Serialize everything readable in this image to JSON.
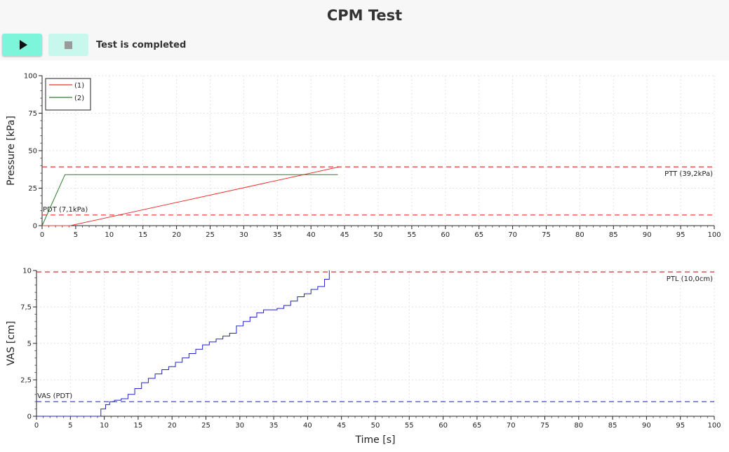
{
  "header": {
    "title": "CPM Test",
    "play_icon": "play-icon",
    "stop_icon": "stop-icon",
    "status": "Test is completed",
    "colors": {
      "play_button": "#7df5da",
      "stop_button": "#c8f7ee"
    }
  },
  "chart_data": [
    {
      "type": "line",
      "xlabel": "",
      "ylabel": "Pressure [kPa]",
      "xlim": [
        0,
        100
      ],
      "ylim": [
        0,
        100
      ],
      "xticks": [
        0,
        5,
        10,
        15,
        20,
        25,
        30,
        35,
        40,
        45,
        50,
        55,
        60,
        65,
        70,
        75,
        80,
        85,
        90,
        95,
        100
      ],
      "yticks": [
        0,
        25,
        50,
        75,
        100
      ],
      "ytick_labels": [
        "0",
        "25",
        "50",
        "75",
        "100"
      ],
      "grid": true,
      "legend": "top-left",
      "series": [
        {
          "name": "(1)",
          "color": "#ee3333",
          "x": [
            0,
            4.2,
            44.2
          ],
          "y": [
            0,
            0,
            39.2
          ]
        },
        {
          "name": "(2)",
          "color": "#2e7d2e",
          "x": [
            0,
            3.4,
            44
          ],
          "y": [
            0,
            34,
            34
          ]
        }
      ],
      "reference_lines": [
        {
          "label": "PTT (39,2kPa)",
          "y": 39.2,
          "color": "#ee3333",
          "label_position": "right"
        },
        {
          "label": "PDT (7,1kPa)",
          "y": 7.1,
          "color": "#ee3333",
          "label_position": "left"
        }
      ]
    },
    {
      "type": "line",
      "xlabel": "Time [s]",
      "ylabel": "VAS [cm]",
      "xlim": [
        0,
        100
      ],
      "ylim": [
        0,
        10
      ],
      "xticks": [
        0,
        5,
        10,
        15,
        20,
        25,
        30,
        35,
        40,
        45,
        50,
        55,
        60,
        65,
        70,
        75,
        80,
        85,
        90,
        95,
        100
      ],
      "yticks": [
        0,
        2.5,
        5,
        7.5,
        10
      ],
      "ytick_labels": [
        "0",
        "2,5",
        "5",
        "7,5",
        "10"
      ],
      "grid": true,
      "series": [
        {
          "color": "#2222cc",
          "x": [
            0,
            8.8,
            9.5,
            10.2,
            10.8,
            11.5,
            12.5,
            13.5,
            14.5,
            15.5,
            16.5,
            17.5,
            18.5,
            19.5,
            20.5,
            21.5,
            22.5,
            23.5,
            24.5,
            25.5,
            26.5,
            27.5,
            28.5,
            29.5,
            30.5,
            31.5,
            32.5,
            33.5,
            34.5,
            35.5,
            36.5,
            37.5,
            38.5,
            39.5,
            40.5,
            41.5,
            42.5,
            43.2
          ],
          "y": [
            0,
            0,
            0.5,
            0.8,
            1.0,
            1.1,
            1.2,
            1.5,
            1.9,
            2.3,
            2.6,
            2.9,
            3.2,
            3.4,
            3.7,
            4.0,
            4.3,
            4.6,
            4.9,
            5.1,
            5.3,
            5.5,
            5.7,
            6.2,
            6.5,
            6.8,
            7.1,
            7.3,
            7.3,
            7.4,
            7.6,
            7.9,
            8.2,
            8.4,
            8.7,
            8.9,
            9.4,
            10.0
          ]
        }
      ],
      "reference_lines": [
        {
          "label": "PTL (10,0cm)",
          "y": 9.9,
          "color": "#cc2222",
          "label_position": "right"
        },
        {
          "label": "VAS (PDT)",
          "y": 1.0,
          "color": "#3333ee",
          "label_position": "left"
        }
      ]
    }
  ]
}
